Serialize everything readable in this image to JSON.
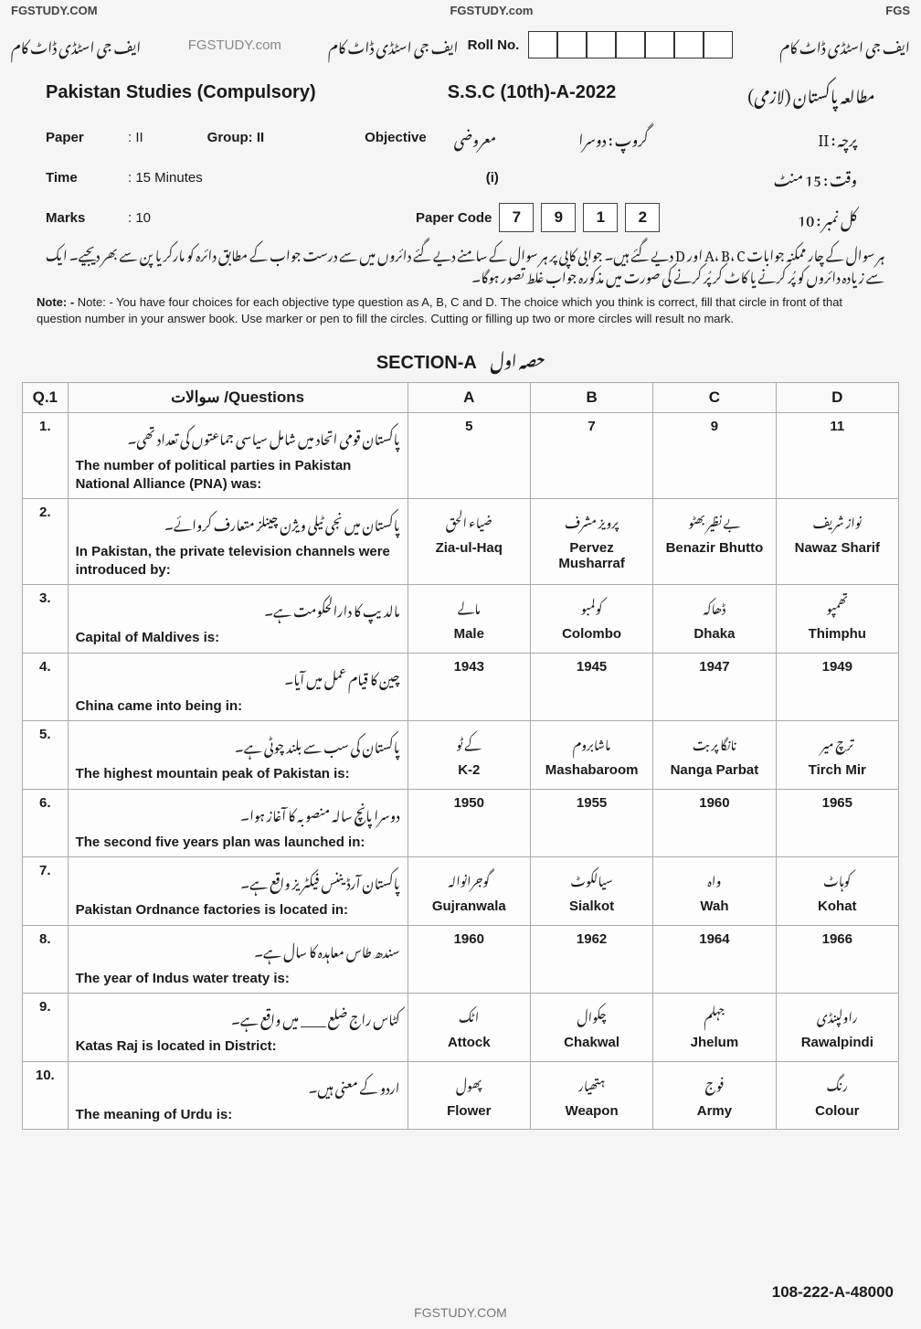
{
  "watermarks": {
    "top_left": "FGSTUDY.COM",
    "top_center": "FGSTUDY.com",
    "top_right": "FGS",
    "header_right_urdu": "ایف جی اسٹڈی ڈاٹ کام",
    "header_left_urdu": "ایف جی اسٹڈی ڈاٹ کام",
    "header_site": "FGSTUDY.com",
    "footer": "FGSTUDY.COM",
    "paper_id": "108-222-A-48000"
  },
  "header": {
    "subject_en": "Pakistan Studies (Compulsory)",
    "subject_urdu": "مطالعہ پاکستان (لازمی)",
    "exam_title": "S.S.C (10th)-A-2022",
    "paper_label": "Paper",
    "paper_val": ": II",
    "paper_urdu": "پرچہ : II",
    "group_label": "Group: II",
    "group_urdu": "گروپ : دوسرا",
    "objective_en": "Objective",
    "objective_urdu": "معروضی",
    "time_label": "Time",
    "time_val": ": 15 Minutes",
    "time_urdu": "وقت : 15 منٹ",
    "marks_label": "Marks",
    "marks_val": ": 10",
    "marks_urdu": "کل نمبر : 10",
    "roll_label": "Roll No.",
    "roll_urdu": "ایف جی اسٹڈی ڈاٹ کام",
    "roll_digits": [
      "",
      "",
      "",
      "",
      "",
      "",
      ""
    ],
    "paper_code_label": "Paper Code",
    "paper_code": [
      "7",
      "9",
      "1",
      "2"
    ],
    "paper_i": "(i)",
    "instructions_urdu": "ہر سوال کے چار ممکنہ جوابات A، B، C اور D دیے گئے ہیں۔ جوابی کاپی پر ہر سوال کے سامنے دیے گئے دائروں میں سے درست جواب کے مطابق دائرہ کو مارکر یا پن سے بھر دیجیے۔ ایک سے زیادہ دائروں کو پُر کرنے یا کاٹ کر پُر کرنے کی صورت میں مذکورہ جواب غلط تصور ہوگا۔",
    "instructions_en": "Note: - You have four choices for each objective type question as A, B, C and D. The choice which you think is correct, fill that circle in front of that question number in your answer book. Use marker or pen to fill the circles. Cutting or filling up two or more circles will result no mark."
  },
  "section": {
    "title_en": "SECTION-A",
    "title_urdu": "حصہ اول"
  },
  "table": {
    "headers": {
      "qn": "Q.1",
      "q": "سوالات /Questions",
      "a": "A",
      "b": "B",
      "c": "C",
      "d": "D"
    },
    "rows": [
      {
        "n": "1.",
        "urdu": "پاکستان قومی اتحاد میں شامل سیاسی جماعتوں کی تعداد تھی۔",
        "en": "The number of political parties in Pakistan National Alliance (PNA) was:",
        "a_en": "5",
        "b_en": "7",
        "c_en": "9",
        "d_en": "11",
        "a_ur": "",
        "b_ur": "",
        "c_ur": "",
        "d_ur": ""
      },
      {
        "n": "2.",
        "urdu": "پاکستان میں نجی ٹیلی ویژن چینلز متعارف کروائے۔",
        "en": "In Pakistan, the private television channels were introduced by:",
        "a_en": "Zia-ul-Haq",
        "b_en": "Pervez Musharraf",
        "c_en": "Benazir Bhutto",
        "d_en": "Nawaz Sharif",
        "a_ur": "ضیاء الحق",
        "b_ur": "پرویز مشرف",
        "c_ur": "بے نظیر بھٹو",
        "d_ur": "نواز شریف"
      },
      {
        "n": "3.",
        "urdu": "مالدیپ کا دارالحکومت ہے۔",
        "en": "Capital of Maldives is:",
        "a_en": "Male",
        "b_en": "Colombo",
        "c_en": "Dhaka",
        "d_en": "Thimphu",
        "a_ur": "مالے",
        "b_ur": "کولمبو",
        "c_ur": "ڈھاکہ",
        "d_ur": "تھمپو"
      },
      {
        "n": "4.",
        "urdu": "چین کا قیام عمل میں آیا۔",
        "en": "China came into being in:",
        "a_en": "1943",
        "b_en": "1945",
        "c_en": "1947",
        "d_en": "1949",
        "a_ur": "",
        "b_ur": "",
        "c_ur": "",
        "d_ur": ""
      },
      {
        "n": "5.",
        "urdu": "پاکستان کی سب سے بلند چوٹی ہے۔",
        "en": "The highest mountain peak of Pakistan is:",
        "a_en": "K-2",
        "b_en": "Mashabaroom",
        "c_en": "Nanga Parbat",
        "d_en": "Tirch Mir",
        "a_ur": "کے ٹو",
        "b_ur": "ماشابروم",
        "c_ur": "نانگا پربت",
        "d_ur": "ترچ میر"
      },
      {
        "n": "6.",
        "urdu": "دوسرا پانچ سالہ منصوبہ کا آغاز ہوا۔",
        "en": "The second five years plan was launched in:",
        "a_en": "1950",
        "b_en": "1955",
        "c_en": "1960",
        "d_en": "1965",
        "a_ur": "",
        "b_ur": "",
        "c_ur": "",
        "d_ur": ""
      },
      {
        "n": "7.",
        "urdu": "پاکستان آرڈیننس فیکٹریز واقع ہے۔",
        "en": "Pakistan Ordnance factories is located in:",
        "a_en": "Gujranwala",
        "b_en": "Sialkot",
        "c_en": "Wah",
        "d_en": "Kohat",
        "a_ur": "گوجرانوالہ",
        "b_ur": "سیالکوٹ",
        "c_ur": "واہ",
        "d_ur": "کوہاٹ"
      },
      {
        "n": "8.",
        "urdu": "سندھ طاس معاہدہ کا سال ہے۔",
        "en": "The year of Indus water treaty is:",
        "a_en": "1960",
        "b_en": "1962",
        "c_en": "1964",
        "d_en": "1966",
        "a_ur": "",
        "b_ur": "",
        "c_ur": "",
        "d_ur": ""
      },
      {
        "n": "9.",
        "urdu": "کٹاس راج ضلع ____ میں واقع ہے۔",
        "en": "Katas Raj is located in District:",
        "a_en": "Attock",
        "b_en": "Chakwal",
        "c_en": "Jhelum",
        "d_en": "Rawalpindi",
        "a_ur": "اٹک",
        "b_ur": "چکوال",
        "c_ur": "جہلم",
        "d_ur": "راولپنڈی"
      },
      {
        "n": "10.",
        "urdu": "اردو کے معنی ہیں۔",
        "en": "The meaning of Urdu is:",
        "a_en": "Flower",
        "b_en": "Weapon",
        "c_en": "Army",
        "d_en": "Colour",
        "a_ur": "پھول",
        "b_ur": "ہتھیار",
        "c_ur": "فوج",
        "d_ur": "رنگ"
      }
    ]
  }
}
